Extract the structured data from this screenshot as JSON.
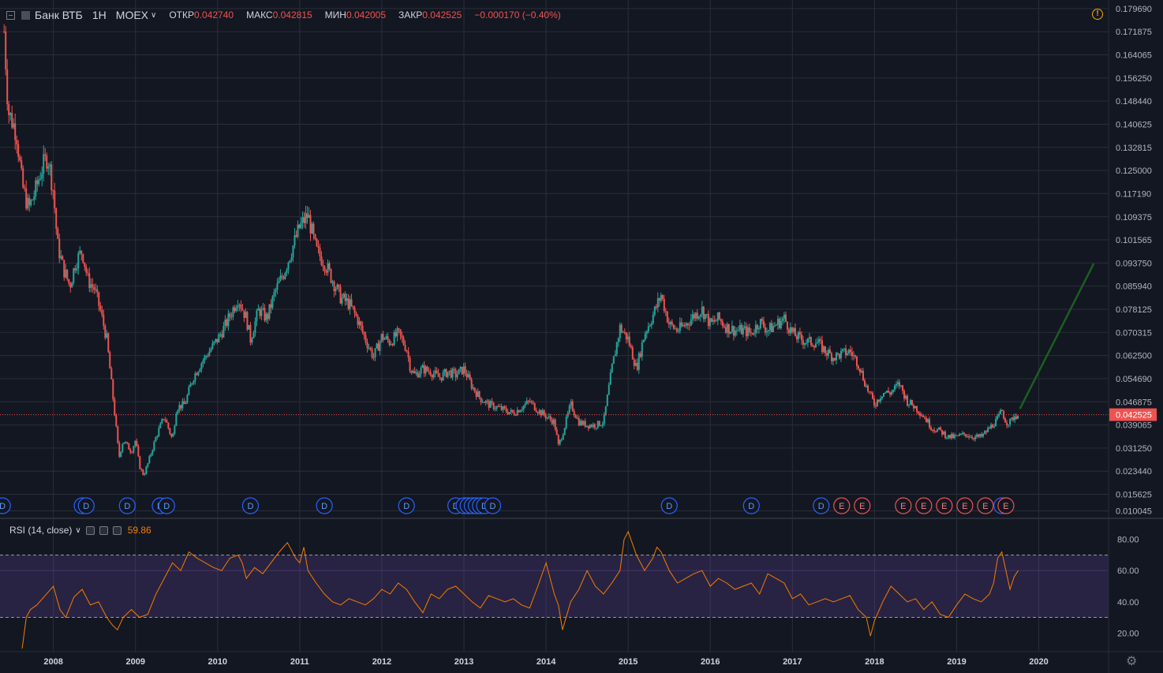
{
  "header": {
    "symbol": "Банк ВТБ",
    "timeframe": "1Н",
    "exchange": "MOEX",
    "open_label": "ОТКР",
    "open_value": "0.042740",
    "high_label": "МАКС",
    "high_value": "0.042815",
    "low_label": "МИН",
    "low_value": "0.042005",
    "close_label": "ЗАКР",
    "close_value": "0.042525",
    "change": "−0.000170 (−0.40%)"
  },
  "rsi_header": {
    "name": "RSI (14, close)",
    "value": "59.86"
  },
  "colors": {
    "background": "#131722",
    "grid": "#2a2e39",
    "up": "#26a69a",
    "down": "#ef5350",
    "rsi_line": "#f57c00",
    "rsi_band": "#7e57c2",
    "dividend_marker": "#2962ff",
    "earnings_marker": "#ef5350",
    "trend_arrow": "#1b5e20",
    "current_price_line": "#ef5350"
  },
  "icons": [
    "collapse-icon",
    "warning-icon",
    "chevron-down-icon",
    "eye-icon",
    "settings-icon",
    "close-icon",
    "gear-icon"
  ],
  "chart_data": [
    {
      "type": "candlestick",
      "title": "Банк ВТБ 1Н MOEX",
      "x_ticks": [
        "2008",
        "2009",
        "2010",
        "2011",
        "2012",
        "2013",
        "2014",
        "2015",
        "2016",
        "2017",
        "2018",
        "2019",
        "2020"
      ],
      "y_ticks": [
        "0.179690",
        "0.171875",
        "0.164065",
        "0.156250",
        "0.148440",
        "0.140625",
        "0.132815",
        "0.125000",
        "0.117190",
        "0.109375",
        "0.101565",
        "0.093750",
        "0.085940",
        "0.078125",
        "0.070315",
        "0.062500",
        "0.054690",
        "0.046875",
        "0.039065",
        "0.031250",
        "0.023440",
        "0.015625",
        "0.010045"
      ],
      "ylim": [
        0.0075,
        0.1826
      ],
      "xlim": [
        2007.35,
        2020.85
      ],
      "current_price": "0.042525",
      "close_series": {
        "x": [
          2007.4,
          2007.45,
          2007.55,
          2007.62,
          2007.7,
          2007.78,
          2007.85,
          2007.93,
          2008.0,
          2008.05,
          2008.12,
          2008.2,
          2008.27,
          2008.35,
          2008.42,
          2008.5,
          2008.57,
          2008.65,
          2008.7,
          2008.75,
          2008.8,
          2008.85,
          2008.9,
          2008.95,
          2009.0,
          2009.05,
          2009.1,
          2009.15,
          2009.25,
          2009.35,
          2009.45,
          2009.5,
          2009.6,
          2009.7,
          2009.8,
          2009.9,
          2010.0,
          2010.1,
          2010.25,
          2010.35,
          2010.4,
          2010.5,
          2010.6,
          2010.7,
          2010.8,
          2010.9,
          2011.0,
          2011.1,
          2011.2,
          2011.3,
          2011.4,
          2011.5,
          2011.6,
          2011.7,
          2011.8,
          2011.9,
          2012.0,
          2012.1,
          2012.2,
          2012.3,
          2012.35,
          2012.4,
          2012.5,
          2012.6,
          2012.7,
          2012.8,
          2012.9,
          2013.0,
          2013.1,
          2013.2,
          2013.3,
          2013.4,
          2013.5,
          2013.6,
          2013.7,
          2013.8,
          2013.9,
          2014.0,
          2014.1,
          2014.15,
          2014.2,
          2014.3,
          2014.4,
          2014.5,
          2014.6,
          2014.7,
          2014.8,
          2014.9,
          2015.0,
          2015.1,
          2015.2,
          2015.3,
          2015.4,
          2015.5,
          2015.6,
          2015.7,
          2015.8,
          2015.9,
          2016.0,
          2016.1,
          2016.2,
          2016.3,
          2016.4,
          2016.5,
          2016.6,
          2016.7,
          2016.8,
          2016.9,
          2017.0,
          2017.1,
          2017.2,
          2017.3,
          2017.4,
          2017.5,
          2017.6,
          2017.7,
          2017.8,
          2017.9,
          2018.0,
          2018.05,
          2018.1,
          2018.2,
          2018.3,
          2018.4,
          2018.5,
          2018.6,
          2018.7,
          2018.8,
          2018.9,
          2019.0,
          2019.1,
          2019.2,
          2019.3,
          2019.4,
          2019.5,
          2019.55,
          2019.6,
          2019.65,
          2019.7,
          2019.75
        ],
        "y": [
          0.172,
          0.145,
          0.138,
          0.12,
          0.112,
          0.118,
          0.125,
          0.13,
          0.118,
          0.1,
          0.092,
          0.086,
          0.094,
          0.098,
          0.088,
          0.085,
          0.078,
          0.068,
          0.055,
          0.042,
          0.028,
          0.034,
          0.032,
          0.03,
          0.034,
          0.025,
          0.022,
          0.026,
          0.035,
          0.042,
          0.034,
          0.045,
          0.046,
          0.055,
          0.06,
          0.064,
          0.068,
          0.073,
          0.082,
          0.075,
          0.068,
          0.078,
          0.075,
          0.084,
          0.09,
          0.098,
          0.106,
          0.11,
          0.098,
          0.094,
          0.088,
          0.082,
          0.08,
          0.075,
          0.068,
          0.062,
          0.069,
          0.067,
          0.07,
          0.065,
          0.058,
          0.056,
          0.058,
          0.057,
          0.055,
          0.057,
          0.056,
          0.058,
          0.052,
          0.048,
          0.046,
          0.045,
          0.044,
          0.043,
          0.045,
          0.047,
          0.044,
          0.042,
          0.04,
          0.032,
          0.036,
          0.046,
          0.04,
          0.039,
          0.039,
          0.04,
          0.058,
          0.072,
          0.068,
          0.058,
          0.07,
          0.076,
          0.083,
          0.073,
          0.071,
          0.073,
          0.076,
          0.078,
          0.073,
          0.075,
          0.072,
          0.071,
          0.071,
          0.07,
          0.074,
          0.071,
          0.073,
          0.075,
          0.07,
          0.068,
          0.067,
          0.067,
          0.064,
          0.062,
          0.063,
          0.064,
          0.06,
          0.052,
          0.046,
          0.048,
          0.05,
          0.05,
          0.053,
          0.047,
          0.045,
          0.042,
          0.038,
          0.037,
          0.035,
          0.035,
          0.036,
          0.035,
          0.035,
          0.038,
          0.041,
          0.044,
          0.04,
          0.04,
          0.042,
          0.0425
        ]
      }
    },
    {
      "type": "line",
      "title": "RSI (14, close)",
      "y_ticks": [
        "80.00",
        "60.00",
        "40.00",
        "20.00"
      ],
      "ylim": [
        8,
        92
      ],
      "band": [
        30,
        70
      ],
      "midline": 60,
      "series": [
        {
          "x": [
            2007.62,
            2007.67,
            2007.72,
            2007.8,
            2007.9,
            2008.0,
            2008.08,
            2008.15,
            2008.25,
            2008.35,
            2008.45,
            2008.55,
            2008.65,
            2008.72,
            2008.78,
            2008.85,
            2008.95,
            2009.05,
            2009.15,
            2009.25,
            2009.35,
            2009.45,
            2009.55,
            2009.65,
            2009.75,
            2009.85,
            2009.95,
            2010.05,
            2010.15,
            2010.25,
            2010.3,
            2010.35,
            2010.45,
            2010.55,
            2010.65,
            2010.75,
            2010.85,
            2010.95,
            2011.0,
            2011.05,
            2011.1,
            2011.2,
            2011.3,
            2011.4,
            2011.5,
            2011.6,
            2011.7,
            2011.8,
            2011.9,
            2012.0,
            2012.1,
            2012.2,
            2012.3,
            2012.4,
            2012.5,
            2012.6,
            2012.7,
            2012.8,
            2012.9,
            2013.0,
            2013.1,
            2013.2,
            2013.3,
            2013.4,
            2013.5,
            2013.6,
            2013.7,
            2013.8,
            2013.9,
            2014.0,
            2014.1,
            2014.15,
            2014.2,
            2014.3,
            2014.4,
            2014.5,
            2014.6,
            2014.7,
            2014.8,
            2014.9,
            2014.95,
            2015.0,
            2015.1,
            2015.2,
            2015.3,
            2015.35,
            2015.4,
            2015.5,
            2015.6,
            2015.7,
            2015.8,
            2015.9,
            2016.0,
            2016.1,
            2016.2,
            2016.3,
            2016.4,
            2016.5,
            2016.6,
            2016.7,
            2016.8,
            2016.9,
            2017.0,
            2017.1,
            2017.2,
            2017.3,
            2017.4,
            2017.5,
            2017.6,
            2017.7,
            2017.8,
            2017.9,
            2017.95,
            2018.0,
            2018.1,
            2018.2,
            2018.3,
            2018.4,
            2018.5,
            2018.6,
            2018.7,
            2018.8,
            2018.9,
            2019.0,
            2019.1,
            2019.2,
            2019.3,
            2019.4,
            2019.45,
            2019.5,
            2019.55,
            2019.6,
            2019.65,
            2019.7,
            2019.75
          ],
          "y": [
            10,
            30,
            35,
            38,
            44,
            50,
            35,
            30,
            43,
            48,
            38,
            40,
            30,
            25,
            22,
            30,
            35,
            30,
            32,
            45,
            55,
            65,
            60,
            72,
            68,
            65,
            62,
            60,
            68,
            70,
            65,
            55,
            62,
            58,
            65,
            72,
            78,
            68,
            65,
            75,
            60,
            52,
            45,
            40,
            38,
            42,
            40,
            38,
            42,
            48,
            45,
            52,
            48,
            40,
            33,
            45,
            42,
            48,
            50,
            45,
            40,
            36,
            44,
            42,
            40,
            42,
            38,
            36,
            50,
            65,
            45,
            38,
            22,
            40,
            48,
            60,
            50,
            45,
            52,
            60,
            80,
            85,
            70,
            60,
            68,
            75,
            72,
            60,
            52,
            55,
            58,
            60,
            50,
            55,
            52,
            48,
            50,
            52,
            45,
            58,
            55,
            52,
            42,
            45,
            38,
            40,
            42,
            40,
            42,
            44,
            35,
            30,
            18,
            28,
            40,
            50,
            45,
            40,
            42,
            35,
            40,
            32,
            30,
            38,
            45,
            42,
            40,
            45,
            52,
            68,
            72,
            60,
            48,
            56,
            60
          ]
        }
      ]
    }
  ],
  "events": {
    "dividends": [
      2007.38,
      2008.35,
      2008.4,
      2008.9,
      2009.3,
      2009.38,
      2010.4,
      2011.3,
      2012.3,
      2012.9,
      2013.0,
      2013.05,
      2013.1,
      2013.15,
      2013.2,
      2013.25,
      2013.35,
      2015.5,
      2016.5,
      2017.35,
      2019.55
    ],
    "earnings": [
      2017.6,
      2017.85,
      2018.35,
      2018.6,
      2018.85,
      2019.1,
      2019.35,
      2019.6
    ],
    "dividend_label": "D",
    "earnings_label": "E"
  }
}
